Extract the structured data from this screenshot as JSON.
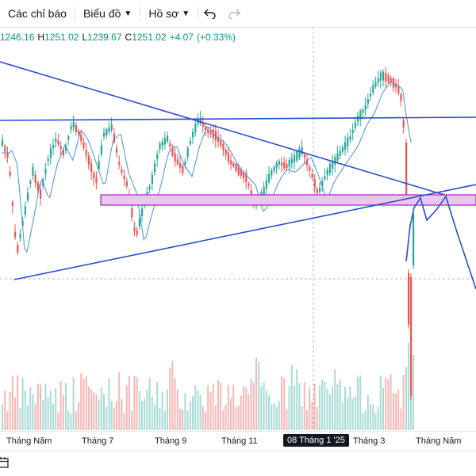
{
  "toolbar": {
    "indicators_label": "Các chỉ báo",
    "chart_type_label": "Biểu đồ",
    "profile_label": "Hồ sơ"
  },
  "legend": {
    "open": "1246.16",
    "high_prefix": "H",
    "high": "1251.02",
    "low_prefix": "L",
    "low": "1239.67",
    "close_prefix": "C",
    "close": "1251.02",
    "change": "+4.07",
    "change_pct": "(+0.33%)",
    "color_up": "#089981"
  },
  "xaxis": {
    "labels": [
      "Tháng Năm",
      "Tháng 7",
      "Tháng 9",
      "Tháng 11",
      "08 Tháng 1 '25",
      "Tháng 3",
      "Tháng Năm"
    ],
    "highlighted_index": 4
  },
  "colors": {
    "up": "#26a69a",
    "down": "#ef5350",
    "trendline": "#2a4dd0",
    "ma": "#4a90d9",
    "zone_fill": "#e9c8ef",
    "zone_border": "#9c27b0"
  },
  "icons": {
    "undo": "undo-icon",
    "redo": "redo-icon",
    "calendar": "calendar-icon"
  }
}
